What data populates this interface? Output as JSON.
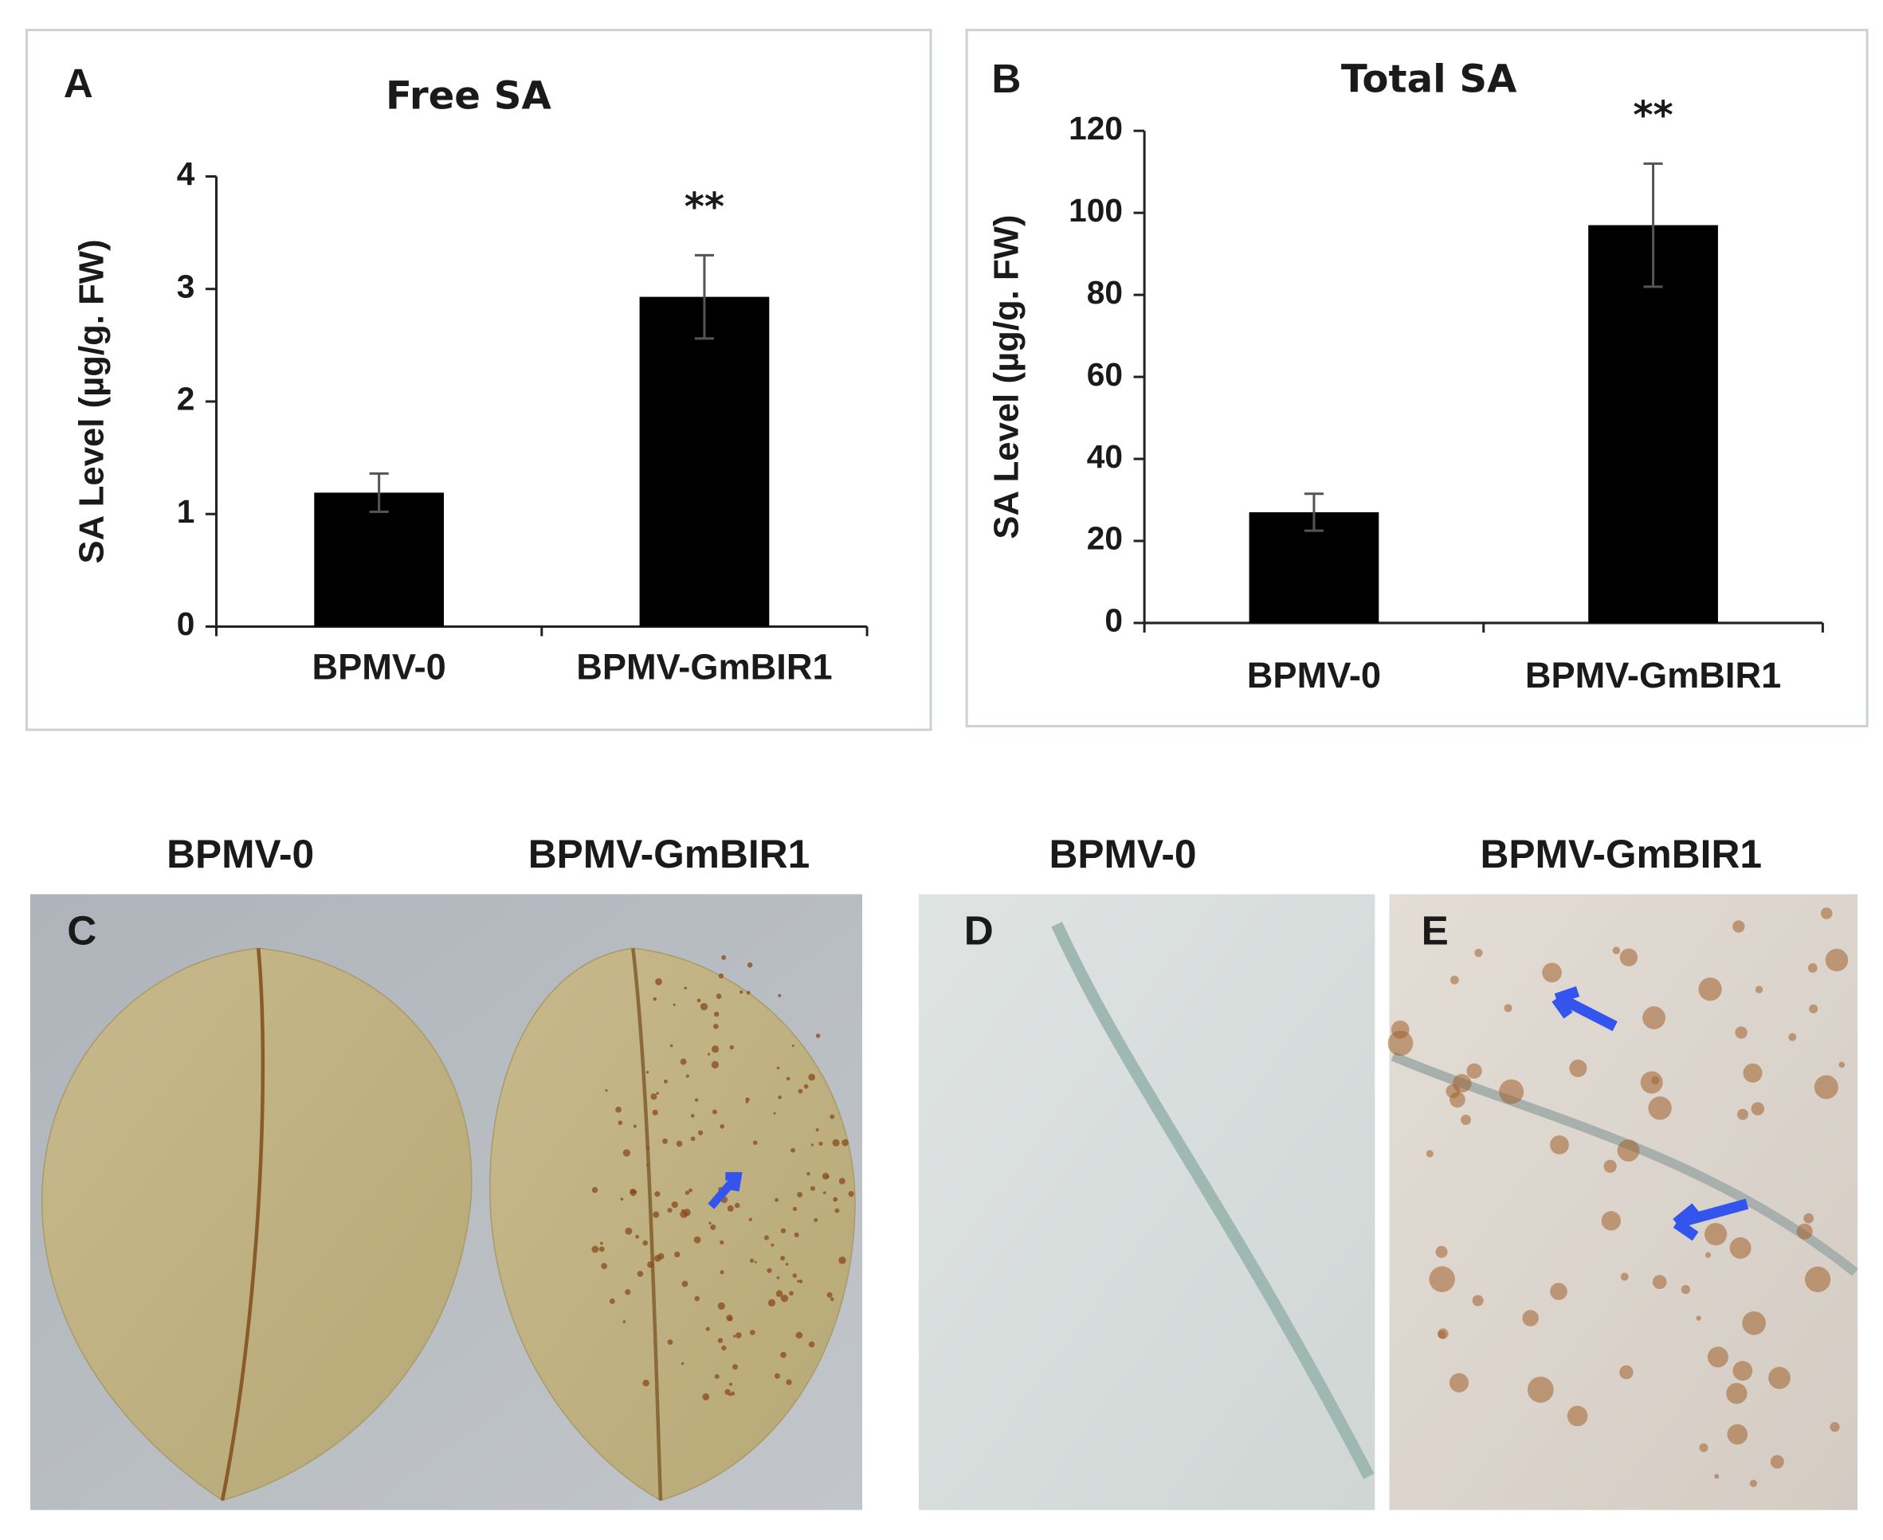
{
  "chart_data": [
    {
      "type": "bar",
      "panel": "A",
      "title": "Free SA",
      "y_label": "SA Level (µg/g. FW)",
      "categories": [
        "BPMV-0",
        "BPMV-GmBIR1"
      ],
      "values": [
        1.19,
        2.93
      ],
      "errors": [
        0.17,
        0.37
      ],
      "color": "#000000",
      "ylim": [
        0,
        4
      ],
      "yticks": [
        0,
        1,
        2,
        3,
        4
      ],
      "annotations": [
        {
          "text": "**",
          "x": "BPMV-GmBIR1"
        }
      ]
    },
    {
      "type": "bar",
      "panel": "B",
      "title": "Total SA",
      "y_label": "SA Level (µg/g. FW)",
      "categories": [
        "BPMV-0",
        "BPMV-GmBIR1"
      ],
      "values": [
        27,
        97
      ],
      "errors": [
        4.5,
        15
      ],
      "color": "#000000",
      "ylim": [
        0,
        120
      ],
      "yticks": [
        0,
        20,
        40,
        60,
        80,
        100,
        120
      ],
      "annotations": [
        {
          "text": "**",
          "x": "BPMV-GmBIR1"
        }
      ]
    }
  ],
  "photos": [
    {
      "panel": "C",
      "headers": [
        "BPMV-0",
        "BPMV-GmBIR1"
      ]
    },
    {
      "panel": "D",
      "headers": [
        "BPMV-0"
      ]
    },
    {
      "panel": "E",
      "headers": [
        "BPMV-GmBIR1"
      ]
    }
  ]
}
